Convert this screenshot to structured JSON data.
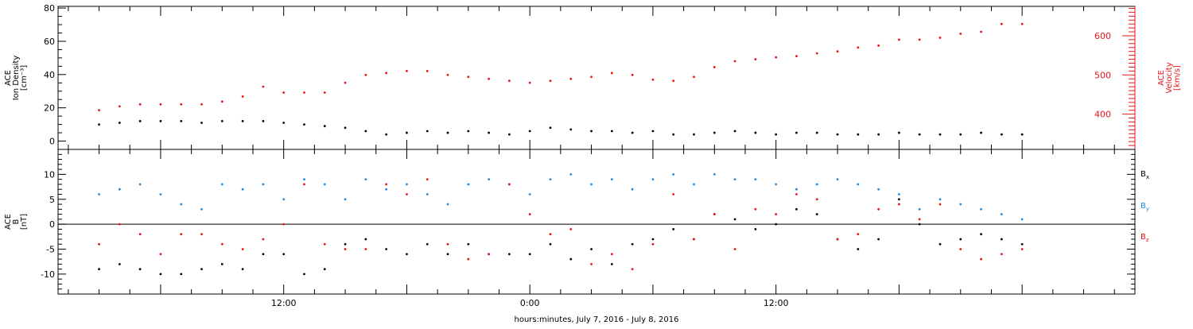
{
  "chart_data": [
    {
      "type": "scatter",
      "panel": "top",
      "ylabel_lines": [
        "ACE",
        "Ion Density",
        "[cm⁻³]"
      ],
      "ylim": [
        -5,
        81
      ],
      "yticks": [
        0,
        20,
        40,
        60,
        80
      ],
      "y2label_lines": [
        "ACE",
        "Velocity",
        "[km/s]"
      ],
      "y2lim": [
        310,
        675
      ],
      "y2ticks": [
        400,
        500,
        600
      ],
      "grid": false,
      "series": [
        {
          "name": "Ion Density",
          "axis": "left",
          "color": "#000000",
          "points": [
            [
              -6,
              10
            ],
            [
              -4,
              11
            ],
            [
              -2,
              12
            ],
            [
              0,
              12
            ],
            [
              2,
              12
            ],
            [
              4,
              11
            ],
            [
              6,
              12
            ],
            [
              8,
              12
            ],
            [
              10,
              12
            ],
            [
              12,
              11
            ],
            [
              14,
              10
            ],
            [
              16,
              9
            ],
            [
              18,
              8
            ],
            [
              20,
              6
            ],
            [
              22,
              4
            ],
            [
              24,
              5
            ],
            [
              26,
              6
            ],
            [
              28,
              5
            ],
            [
              30,
              6
            ],
            [
              32,
              5
            ],
            [
              34,
              4
            ],
            [
              36,
              6
            ],
            [
              38,
              8
            ],
            [
              40,
              7
            ],
            [
              42,
              6
            ],
            [
              44,
              6
            ],
            [
              46,
              5
            ],
            [
              48,
              6
            ],
            [
              50,
              4
            ],
            [
              52,
              4
            ],
            [
              54,
              5
            ],
            [
              56,
              6
            ],
            [
              58,
              5
            ],
            [
              60,
              4
            ],
            [
              62,
              5
            ],
            [
              64,
              5
            ],
            [
              66,
              4
            ],
            [
              68,
              4
            ],
            [
              70,
              4
            ],
            [
              72,
              5
            ],
            [
              74,
              4
            ],
            [
              76,
              4
            ],
            [
              78,
              4
            ],
            [
              80,
              5
            ],
            [
              82,
              4
            ],
            [
              84,
              4
            ]
          ]
        },
        {
          "name": "Velocity",
          "axis": "right",
          "color": "#e8141c",
          "points": [
            [
              -6,
              410
            ],
            [
              -4,
              420
            ],
            [
              -2,
              425
            ],
            [
              0,
              425
            ],
            [
              2,
              425
            ],
            [
              4,
              425
            ],
            [
              6,
              432
            ],
            [
              8,
              445
            ],
            [
              10,
              470
            ],
            [
              12,
              455
            ],
            [
              14,
              455
            ],
            [
              16,
              455
            ],
            [
              18,
              480
            ],
            [
              20,
              500
            ],
            [
              22,
              505
            ],
            [
              24,
              510
            ],
            [
              26,
              510
            ],
            [
              28,
              500
            ],
            [
              30,
              495
            ],
            [
              32,
              490
            ],
            [
              34,
              485
            ],
            [
              36,
              480
            ],
            [
              38,
              485
            ],
            [
              40,
              490
            ],
            [
              42,
              495
            ],
            [
              44,
              505
            ],
            [
              46,
              500
            ],
            [
              48,
              488
            ],
            [
              50,
              485
            ],
            [
              52,
              495
            ],
            [
              54,
              520
            ],
            [
              56,
              535
            ],
            [
              58,
              540
            ],
            [
              60,
              545
            ],
            [
              62,
              548
            ],
            [
              64,
              555
            ],
            [
              66,
              560
            ],
            [
              68,
              570
            ],
            [
              70,
              575
            ],
            [
              72,
              590
            ],
            [
              74,
              590
            ],
            [
              76,
              595
            ],
            [
              78,
              605
            ],
            [
              80,
              610
            ],
            [
              82,
              630
            ],
            [
              84,
              630
            ]
          ]
        }
      ]
    },
    {
      "type": "scatter",
      "panel": "bottom",
      "ylabel_lines": [
        "ACE",
        "B",
        "[nT]"
      ],
      "ylim": [
        -14,
        15
      ],
      "yticks": [
        -10,
        -5,
        0,
        5,
        10
      ],
      "zero_line": true,
      "grid": false,
      "xlim": [
        -10,
        95
      ],
      "xticks_major": [
        12,
        36,
        60,
        84
      ],
      "xtick_labels": [
        "12:00",
        "0:00",
        "12:00",
        ""
      ],
      "xlabel": "hours:minutes, July  7, 2016 - July  8, 2016",
      "legend_position": "right",
      "series": [
        {
          "name": "B",
          "subscript": "x",
          "color": "#000000",
          "points": [
            [
              -6,
              -9
            ],
            [
              -4,
              -8
            ],
            [
              -2,
              -9
            ],
            [
              0,
              -10
            ],
            [
              2,
              -10
            ],
            [
              4,
              -9
            ],
            [
              6,
              -8
            ],
            [
              8,
              -9
            ],
            [
              10,
              -6
            ],
            [
              12,
              -6
            ],
            [
              14,
              -10
            ],
            [
              16,
              -9
            ],
            [
              18,
              -4
            ],
            [
              20,
              -3
            ],
            [
              22,
              -5
            ],
            [
              24,
              -6
            ],
            [
              26,
              -4
            ],
            [
              28,
              -6
            ],
            [
              30,
              -4
            ],
            [
              32,
              -6
            ],
            [
              34,
              -6
            ],
            [
              36,
              -6
            ],
            [
              38,
              -4
            ],
            [
              40,
              -7
            ],
            [
              42,
              -5
            ],
            [
              44,
              -8
            ],
            [
              46,
              -4
            ],
            [
              48,
              -3
            ],
            [
              50,
              -1
            ],
            [
              52,
              -3
            ],
            [
              54,
              2
            ],
            [
              56,
              1
            ],
            [
              58,
              -1
            ],
            [
              60,
              0
            ],
            [
              62,
              3
            ],
            [
              64,
              2
            ],
            [
              66,
              -3
            ],
            [
              68,
              -5
            ],
            [
              70,
              -3
            ],
            [
              72,
              5
            ],
            [
              74,
              0
            ],
            [
              76,
              -4
            ],
            [
              78,
              -3
            ],
            [
              80,
              -2
            ],
            [
              82,
              -3
            ],
            [
              84,
              -4
            ]
          ]
        },
        {
          "name": "B",
          "subscript": "y",
          "color": "#1e8ae0",
          "points": [
            [
              -6,
              6
            ],
            [
              -4,
              7
            ],
            [
              -2,
              8
            ],
            [
              0,
              6
            ],
            [
              2,
              4
            ],
            [
              4,
              3
            ],
            [
              6,
              8
            ],
            [
              8,
              7
            ],
            [
              10,
              8
            ],
            [
              12,
              5
            ],
            [
              14,
              9
            ],
            [
              16,
              8
            ],
            [
              18,
              5
            ],
            [
              20,
              9
            ],
            [
              22,
              7
            ],
            [
              24,
              8
            ],
            [
              26,
              6
            ],
            [
              28,
              4
            ],
            [
              30,
              8
            ],
            [
              32,
              9
            ],
            [
              34,
              8
            ],
            [
              36,
              6
            ],
            [
              38,
              9
            ],
            [
              40,
              10
            ],
            [
              42,
              8
            ],
            [
              44,
              9
            ],
            [
              46,
              7
            ],
            [
              48,
              9
            ],
            [
              50,
              10
            ],
            [
              52,
              8
            ],
            [
              54,
              10
            ],
            [
              56,
              9
            ],
            [
              58,
              9
            ],
            [
              60,
              8
            ],
            [
              62,
              7
            ],
            [
              64,
              8
            ],
            [
              66,
              9
            ],
            [
              68,
              8
            ],
            [
              70,
              7
            ],
            [
              72,
              6
            ],
            [
              74,
              3
            ],
            [
              76,
              5
            ],
            [
              78,
              4
            ],
            [
              80,
              3
            ],
            [
              82,
              2
            ],
            [
              84,
              1
            ]
          ]
        },
        {
          "name": "B",
          "subscript": "z",
          "color": "#e8141c",
          "points": [
            [
              -6,
              -4
            ],
            [
              -4,
              0
            ],
            [
              -2,
              -2
            ],
            [
              0,
              -6
            ],
            [
              2,
              -2
            ],
            [
              4,
              -2
            ],
            [
              6,
              -4
            ],
            [
              8,
              -5
            ],
            [
              10,
              -3
            ],
            [
              12,
              0
            ],
            [
              14,
              8
            ],
            [
              16,
              -4
            ],
            [
              18,
              -5
            ],
            [
              20,
              -5
            ],
            [
              22,
              8
            ],
            [
              24,
              6
            ],
            [
              26,
              9
            ],
            [
              28,
              -4
            ],
            [
              30,
              -7
            ],
            [
              32,
              -6
            ],
            [
              34,
              8
            ],
            [
              36,
              2
            ],
            [
              38,
              -2
            ],
            [
              40,
              -1
            ],
            [
              42,
              -8
            ],
            [
              44,
              -6
            ],
            [
              46,
              -9
            ],
            [
              48,
              -4
            ],
            [
              50,
              6
            ],
            [
              52,
              -3
            ],
            [
              54,
              2
            ],
            [
              56,
              -5
            ],
            [
              58,
              3
            ],
            [
              60,
              2
            ],
            [
              62,
              6
            ],
            [
              64,
              5
            ],
            [
              66,
              -3
            ],
            [
              68,
              -2
            ],
            [
              70,
              3
            ],
            [
              72,
              4
            ],
            [
              74,
              1
            ],
            [
              76,
              4
            ],
            [
              78,
              -5
            ],
            [
              80,
              -7
            ],
            [
              82,
              -6
            ],
            [
              84,
              -5
            ]
          ]
        }
      ]
    }
  ]
}
